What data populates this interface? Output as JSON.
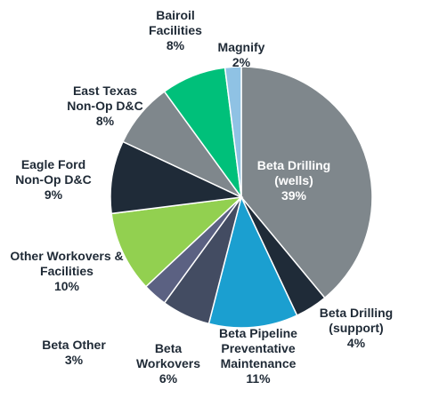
{
  "chart_data": {
    "type": "pie",
    "slices": [
      {
        "name": "Beta Drilling (wells)",
        "label_lines": [
          "Beta Drilling",
          "(wells)"
        ],
        "value": 39,
        "pct_text": "39%",
        "color": "#7f878c",
        "label_inside": true
      },
      {
        "name": "Beta Drilling (support)",
        "label_lines": [
          "Beta Drilling",
          "(support)"
        ],
        "value": 4,
        "pct_text": "4%",
        "color": "#1f2b38"
      },
      {
        "name": "Beta Pipeline Preventative Maintenance",
        "label_lines": [
          "Beta Pipeline",
          "Preventative",
          "Maintenance"
        ],
        "value": 11,
        "pct_text": "11%",
        "color": "#1b9fd0"
      },
      {
        "name": "Beta Workovers",
        "label_lines": [
          "Beta",
          "Workovers"
        ],
        "value": 6,
        "pct_text": "6%",
        "color": "#434c62"
      },
      {
        "name": "Beta Other",
        "label_lines": [
          "Beta Other"
        ],
        "value": 3,
        "pct_text": "3%",
        "color": "#5b6182"
      },
      {
        "name": "Other Workovers & Facilities",
        "label_lines": [
          "Other Workovers &",
          "Facilities"
        ],
        "value": 10,
        "pct_text": "10%",
        "color": "#92d050"
      },
      {
        "name": "Eagle Ford Non-Op D&C",
        "label_lines": [
          "Eagle Ford",
          "Non-Op D&C"
        ],
        "value": 9,
        "pct_text": "9%",
        "color": "#1f2b38"
      },
      {
        "name": "East Texas Non-Op D&C",
        "label_lines": [
          "East Texas",
          "Non-Op D&C"
        ],
        "value": 8,
        "pct_text": "8%",
        "color": "#7f878c"
      },
      {
        "name": "Bairoil Facilities",
        "label_lines": [
          "Bairoil",
          "Facilities"
        ],
        "value": 8,
        "pct_text": "8%",
        "color": "#00c07a"
      },
      {
        "name": "Magnify",
        "label_lines": [
          "Magnify"
        ],
        "value": 2,
        "pct_text": "2%",
        "color": "#8fc2e4"
      }
    ]
  }
}
